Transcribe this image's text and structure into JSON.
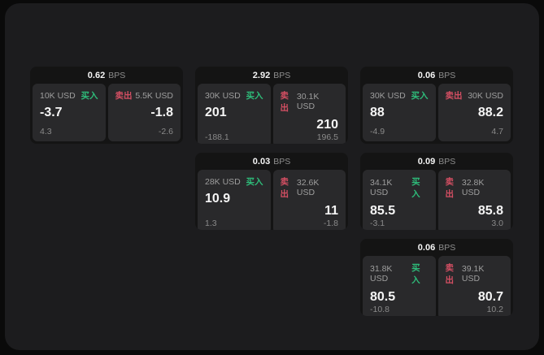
{
  "theme": {
    "page_bg": "#0a0a0a",
    "panel_bg": "#1c1c1e",
    "card_bg": "#141414",
    "tile_bg": "#29292b",
    "text_primary": "#f5f5f5",
    "text_secondary": "#9e9e9e",
    "buy_color": "#2ebd7a",
    "sell_color": "#d44f63"
  },
  "labels": {
    "buy": "买入",
    "sell": "卖出",
    "bps": "BPS"
  },
  "cards": [
    {
      "row": 1,
      "col": 1,
      "bps": "0.62",
      "buy": {
        "amount": "10K USD",
        "value": "-3.7",
        "delta": "4.3"
      },
      "sell": {
        "amount": "5.5K USD",
        "value": "-1.8",
        "delta": "-2.6"
      }
    },
    {
      "row": 1,
      "col": 2,
      "bps": "2.92",
      "buy": {
        "amount": "30K USD",
        "value": "201",
        "delta": "-188.1"
      },
      "sell": {
        "amount": "30.1K USD",
        "value": "210",
        "delta": "196.5"
      }
    },
    {
      "row": 1,
      "col": 3,
      "bps": "0.06",
      "buy": {
        "amount": "30K USD",
        "value": "88",
        "delta": "-4.9"
      },
      "sell": {
        "amount": "30K USD",
        "value": "88.2",
        "delta": "4.7"
      }
    },
    {
      "row": 2,
      "col": 2,
      "bps": "0.03",
      "buy": {
        "amount": "28K USD",
        "value": "10.9",
        "delta": "1.3"
      },
      "sell": {
        "amount": "32.6K USD",
        "value": "11",
        "delta": "-1.8"
      }
    },
    {
      "row": 2,
      "col": 3,
      "bps": "0.09",
      "buy": {
        "amount": "34.1K USD",
        "value": "85.5",
        "delta": "-3.1"
      },
      "sell": {
        "amount": "32.8K USD",
        "value": "85.8",
        "delta": "3.0"
      }
    },
    {
      "row": 3,
      "col": 3,
      "bps": "0.06",
      "buy": {
        "amount": "31.8K USD",
        "value": "80.5",
        "delta": "-10.8"
      },
      "sell": {
        "amount": "39.1K USD",
        "value": "80.7",
        "delta": "10.2"
      }
    }
  ]
}
